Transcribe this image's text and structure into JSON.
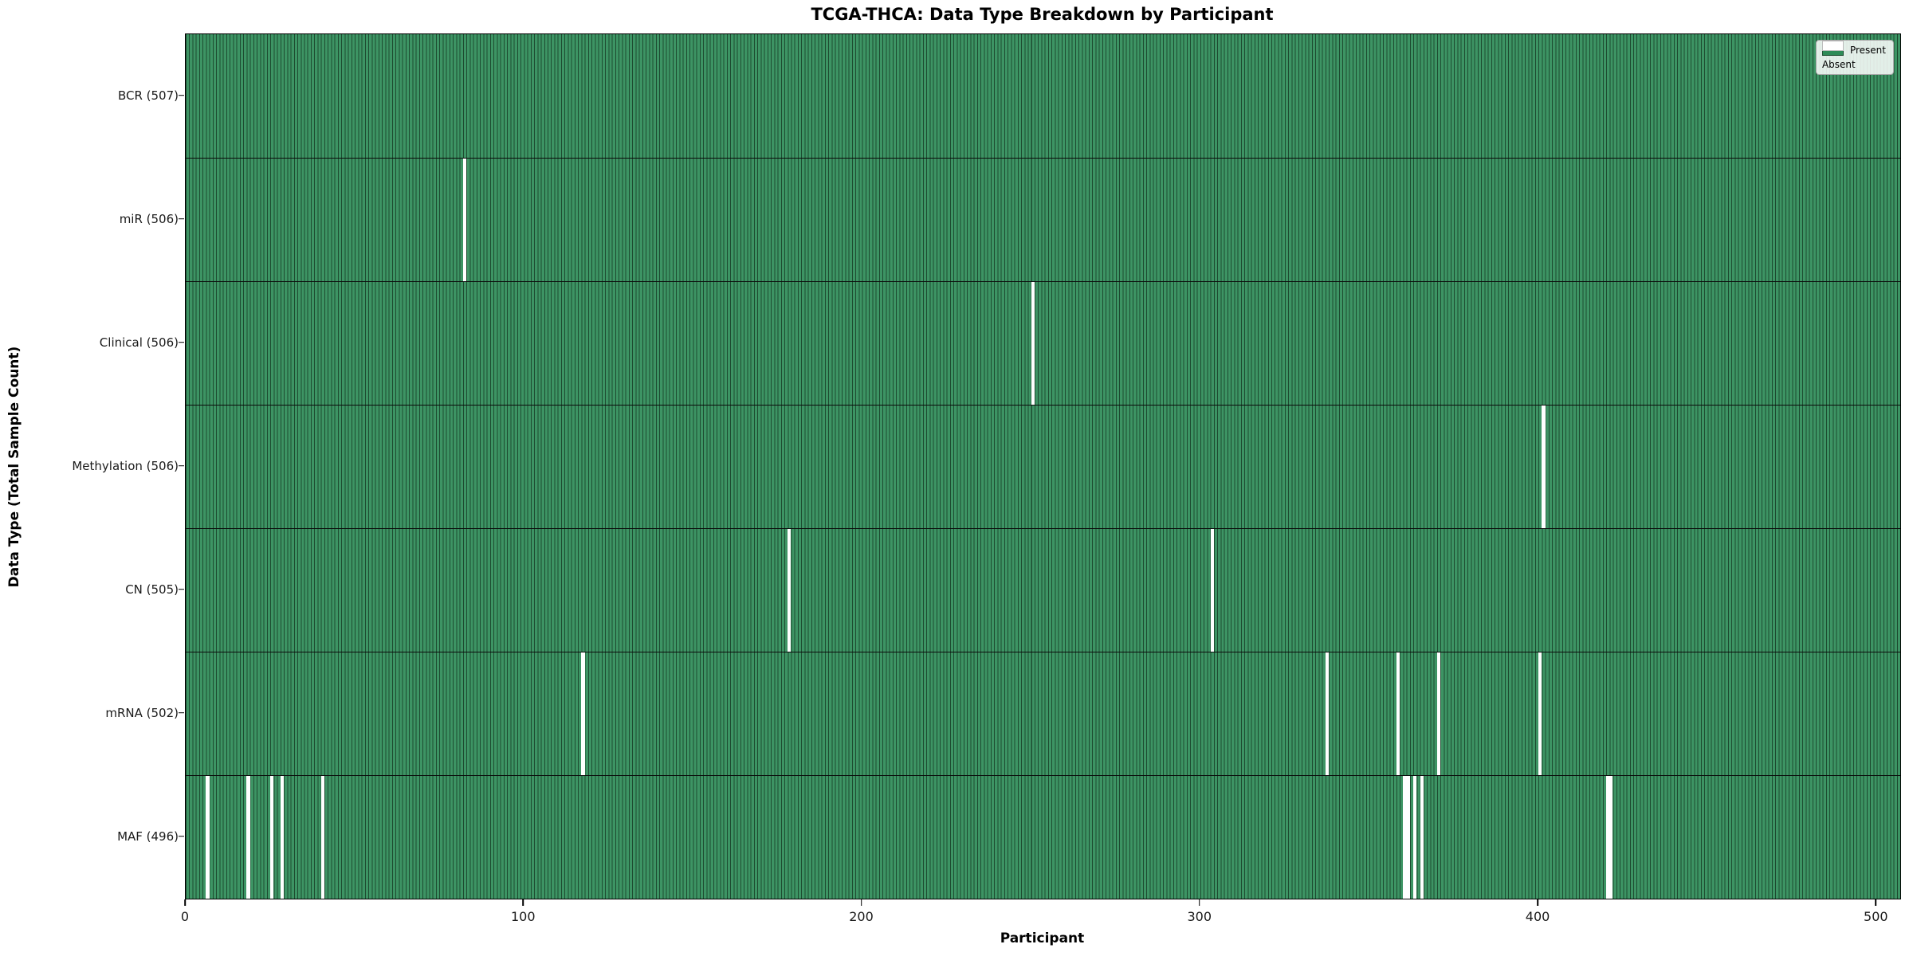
{
  "chart_data": {
    "type": "heatmap",
    "title": "TCGA-THCA: Data Type Breakdown by Participant",
    "xlabel": "Participant",
    "ylabel": "Data Type (Total Sample Count)",
    "x_ticks": [
      0,
      100,
      200,
      300,
      400,
      500
    ],
    "x_range": [
      0,
      507
    ],
    "n_participants": 507,
    "grid": false,
    "legend_position": "upper right",
    "legend": [
      {
        "label": "Present",
        "color": "#2e8b57"
      },
      {
        "label": "Absent",
        "color": "#ffffff"
      }
    ],
    "colors": {
      "present_fill": "#3d9464",
      "bar_edge": "#1d4b30",
      "absent_fill": "#ffffff"
    },
    "rows": [
      {
        "label": "BCR (507)",
        "data_type": "BCR",
        "total": 507,
        "absent_participants": []
      },
      {
        "label": "miR (506)",
        "data_type": "miR",
        "total": 506,
        "absent_participants": [
          82
        ]
      },
      {
        "label": "Clinical (506)",
        "data_type": "Clinical",
        "total": 506,
        "absent_participants": [
          250
        ]
      },
      {
        "label": "Methylation (506)",
        "data_type": "Methylation",
        "total": 506,
        "absent_participants": [
          401
        ]
      },
      {
        "label": "CN (505)",
        "data_type": "CN",
        "total": 505,
        "absent_participants": [
          178,
          303
        ]
      },
      {
        "label": "mRNA (502)",
        "data_type": "mRNA",
        "total": 502,
        "absent_participants": [
          117,
          337,
          358,
          370,
          400
        ]
      },
      {
        "label": "MAF (496)",
        "data_type": "MAF",
        "total": 496,
        "absent_participants": [
          6,
          18,
          25,
          28,
          40,
          360,
          361,
          363,
          365,
          420,
          421
        ]
      }
    ]
  }
}
